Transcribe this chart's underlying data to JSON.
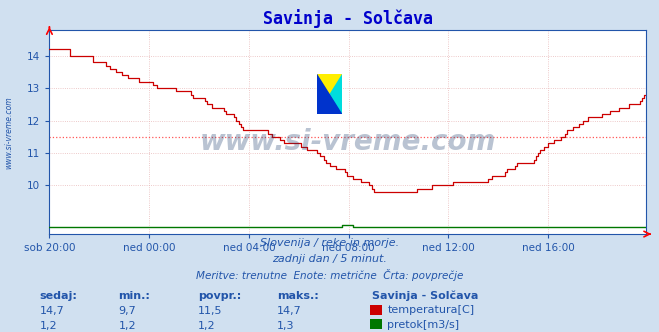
{
  "title": "Savinja - Solčava",
  "bg_color": "#d0e0f0",
  "plot_bg_color": "#ffffff",
  "grid_color": "#e8b8b8",
  "title_color": "#0000cc",
  "axis_label_color": "#2255aa",
  "xlabel_ticks": [
    "sob 20:00",
    "ned 00:00",
    "ned 04:00",
    "ned 08:00",
    "ned 12:00",
    "ned 16:00"
  ],
  "xlabel_tick_positions": [
    0,
    48,
    96,
    144,
    192,
    240
  ],
  "ylim_temp": [
    8.5,
    14.8
  ],
  "xlim": [
    0,
    288
  ],
  "ylabel_ticks": [
    10,
    11,
    12,
    13,
    14
  ],
  "avg_line_value": 11.5,
  "avg_line_color": "#ff5555",
  "temp_line_color": "#cc0000",
  "flow_line_color": "#007700",
  "watermark_text": "www.si-vreme.com",
  "watermark_color": "#1a3a6a",
  "watermark_alpha": 0.3,
  "sub_text1": "Slovenija / reke in morje.",
  "sub_text2": "zadnji dan / 5 minut.",
  "sub_text3": "Meritve: trenutne  Enote: metrične  Črta: povprečje",
  "table_headers": [
    "sedaj:",
    "min.:",
    "povpr.:",
    "maks.:"
  ],
  "table_row1": [
    "14,7",
    "9,7",
    "11,5",
    "14,7"
  ],
  "table_row2": [
    "1,2",
    "1,2",
    "1,2",
    "1,3"
  ],
  "label_temp": "temperatura[C]",
  "label_flow": "pretok[m3/s]",
  "station_label": "Savinja - Solčava",
  "side_label": "www.si-vreme.com",
  "flow_y_in_temp_scale": 8.65,
  "logo_colors": {
    "yellow": "#ffee00",
    "cyan": "#00dddd",
    "blue": "#0033cc"
  }
}
